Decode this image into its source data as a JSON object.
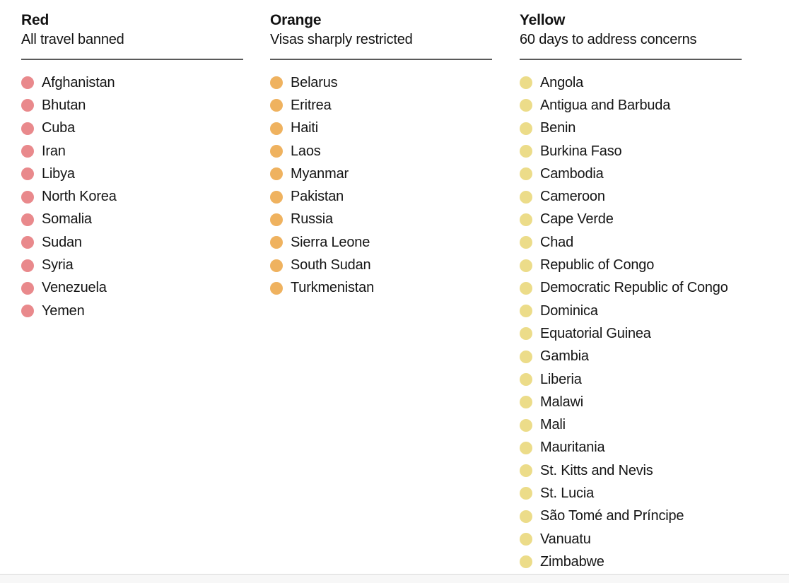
{
  "page": {
    "background_color": "#ffffff",
    "text_color": "#151515",
    "header_rule_color": "#5a5a5a",
    "bottom_divider_color": "#d8d8d8"
  },
  "chart_data": {
    "type": "table",
    "title": "",
    "legend_position": "none",
    "columns": [
      {
        "id": "red",
        "title": "Red",
        "subtitle": "All travel banned",
        "dot_color": "#e9898c",
        "dot_icon": "bullet-dot-icon",
        "countries": [
          "Afghanistan",
          "Bhutan",
          "Cuba",
          "Iran",
          "Libya",
          "North Korea",
          "Somalia",
          "Sudan",
          "Syria",
          "Venezuela",
          "Yemen"
        ]
      },
      {
        "id": "orange",
        "title": "Orange",
        "subtitle": "Visas sharply restricted",
        "dot_color": "#efb25f",
        "dot_icon": "bullet-dot-icon",
        "countries": [
          "Belarus",
          "Eritrea",
          "Haiti",
          "Laos",
          "Myanmar",
          "Pakistan",
          "Russia",
          "Sierra Leone",
          "South Sudan",
          "Turkmenistan"
        ]
      },
      {
        "id": "yellow",
        "title": "Yellow",
        "subtitle": "60 days to address concerns",
        "dot_color": "#ecdc89",
        "dot_icon": "bullet-dot-icon",
        "countries": [
          "Angola",
          "Antigua and Barbuda",
          "Benin",
          "Burkina Faso",
          "Cambodia",
          "Cameroon",
          "Cape Verde",
          "Chad",
          "Republic of Congo",
          "Democratic Republic of Congo",
          "Dominica",
          "Equatorial Guinea",
          "Gambia",
          "Liberia",
          "Malawi",
          "Mali",
          "Mauritania",
          "St. Kitts and Nevis",
          "St. Lucia",
          "São Tomé and Príncipe",
          "Vanuatu",
          "Zimbabwe"
        ]
      }
    ]
  }
}
